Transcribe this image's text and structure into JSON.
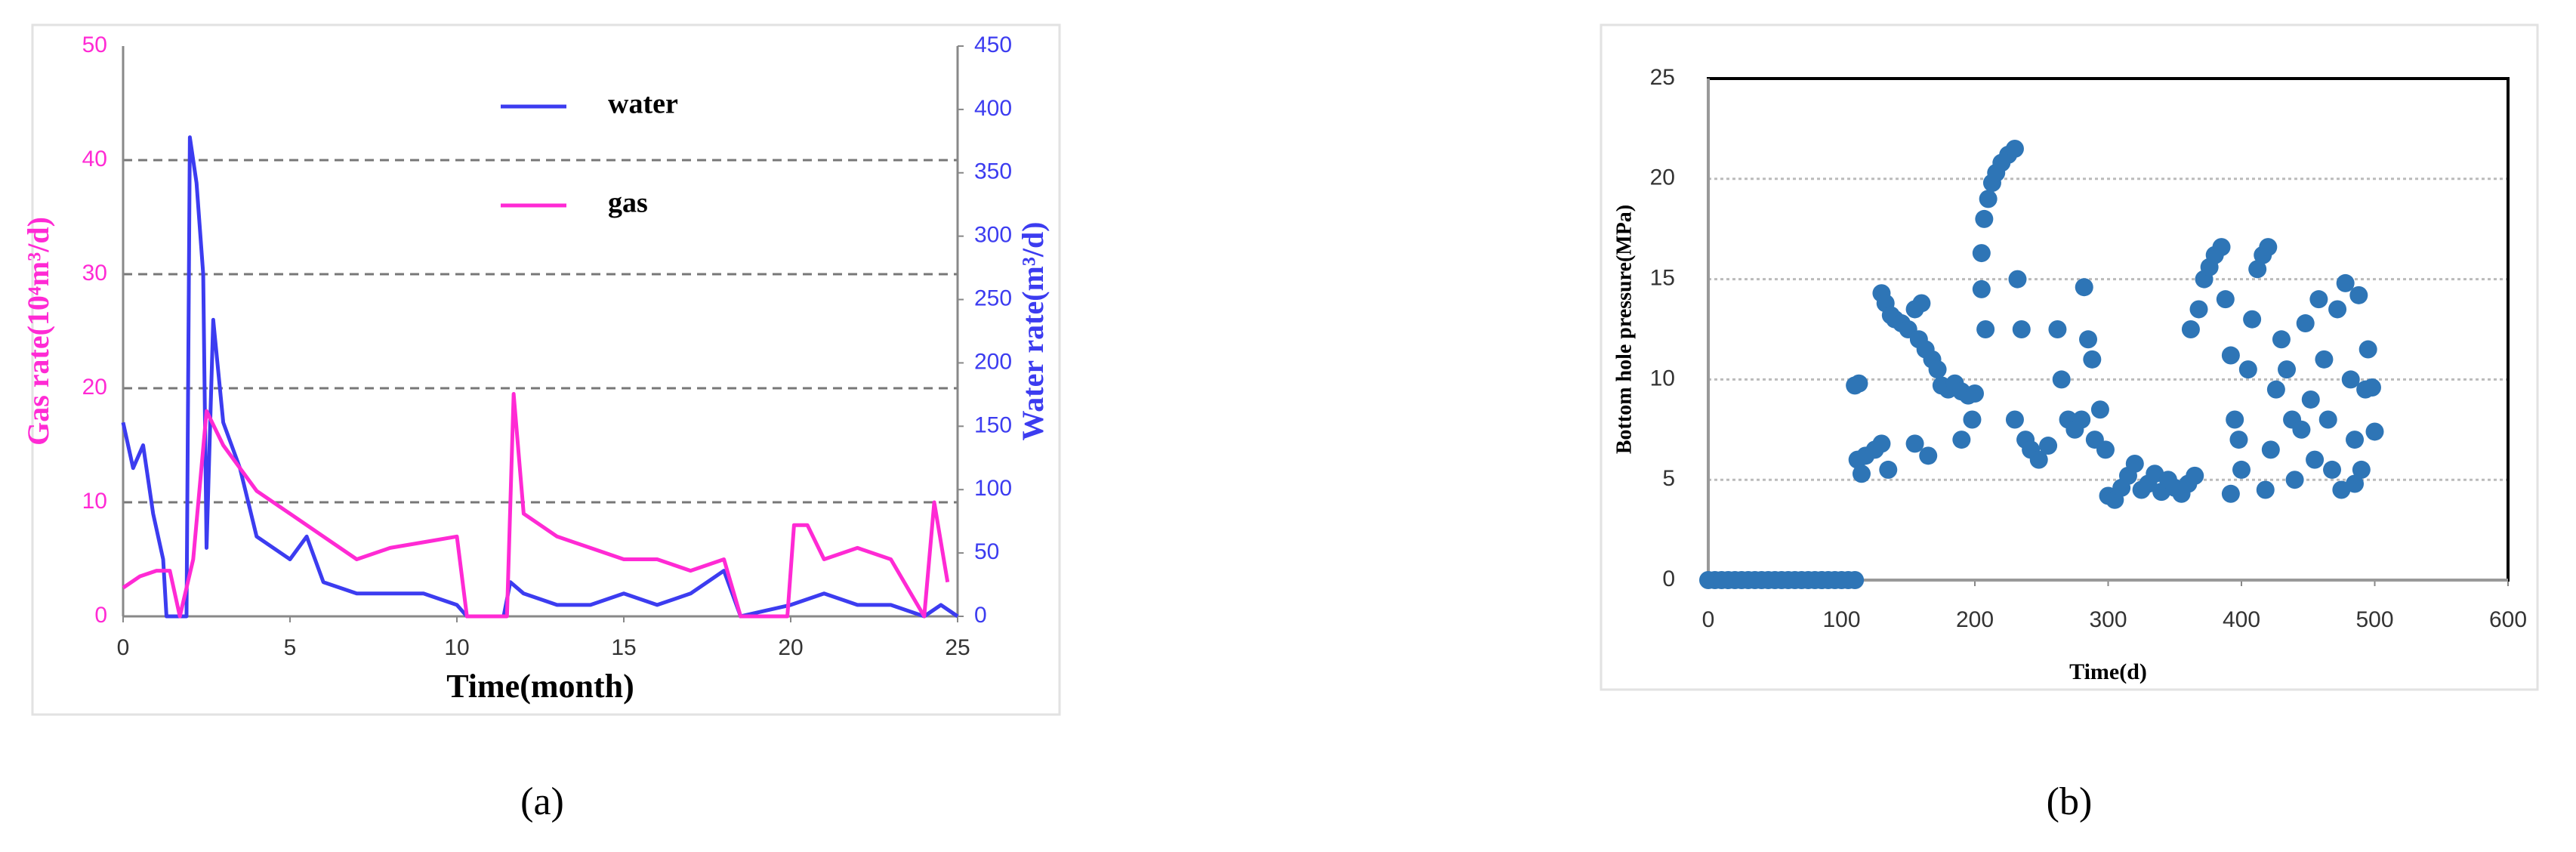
{
  "chart_data": [
    {
      "type": "line",
      "panel_label": "(a)",
      "xlabel": "Time(month)",
      "ylabel": "Gas rate(10⁴m³/d)",
      "y2label": "Water rate(m³/d)",
      "xlim": [
        0,
        25
      ],
      "xticks": [
        0,
        5,
        10,
        15,
        20,
        25
      ],
      "ylim": [
        0,
        50
      ],
      "yticks": [
        0,
        10,
        20,
        30,
        40,
        50
      ],
      "ycolor": "#ff2ad4",
      "y2lim": [
        0,
        450
      ],
      "y2ticks": [
        0,
        50,
        100,
        150,
        200,
        250,
        300,
        350,
        400,
        450
      ],
      "y2color": "#3c3cf0",
      "grid": true,
      "series": [
        {
          "name": "water",
          "color": "#3c3cf0",
          "axis": "y2",
          "x": [
            0,
            0.3,
            0.6,
            0.9,
            1.2,
            1.3,
            1.9,
            2.0,
            2.2,
            2.4,
            2.5,
            2.7,
            3,
            3.5,
            4,
            5,
            5.5,
            6,
            7,
            8,
            9,
            10,
            10.3,
            11.4,
            11.6,
            12,
            13,
            14,
            15,
            16,
            17,
            18,
            18.5,
            20,
            21,
            22,
            23,
            24,
            24.5,
            25
          ],
          "values": [
            153,
            117,
            135,
            81,
            45,
            0,
            0,
            378,
            342,
            270,
            54,
            234,
            153,
            117,
            63,
            45,
            63,
            27,
            18,
            18,
            18,
            9,
            0,
            0,
            27,
            18,
            9,
            9,
            18,
            9,
            18,
            36,
            0,
            9,
            18,
            9,
            9,
            0,
            9,
            0
          ]
        },
        {
          "name": "gas",
          "color": "#ff2ad4",
          "axis": "y",
          "x": [
            0,
            0.5,
            1,
            1.4,
            1.7,
            2.1,
            2.5,
            3,
            4,
            5,
            6,
            7,
            8,
            9,
            10,
            10.3,
            11.5,
            11.7,
            12,
            13,
            14,
            15,
            16,
            17,
            18,
            18.5,
            19.9,
            20.1,
            20.5,
            21,
            22,
            23,
            24,
            24.3,
            24.7
          ],
          "values": [
            2.5,
            3.5,
            4,
            4,
            0,
            5,
            18,
            15,
            11,
            9,
            7,
            5,
            6,
            6.5,
            7,
            0,
            0,
            19.5,
            9,
            7,
            6,
            5,
            5,
            4,
            5,
            0,
            0,
            8,
            8,
            5,
            6,
            5,
            0,
            10,
            3
          ]
        }
      ]
    },
    {
      "type": "scatter",
      "panel_label": "(b)",
      "xlabel": "Time(d)",
      "ylabel": "Bottom hole pressure(MPa)",
      "color": "#2e75b6",
      "xlim": [
        0,
        600
      ],
      "xticks": [
        0,
        100,
        200,
        300,
        400,
        500,
        600
      ],
      "ylim": [
        0,
        25
      ],
      "yticks": [
        0,
        5,
        10,
        15,
        20,
        25
      ],
      "grid": true,
      "x": [
        0,
        5,
        10,
        15,
        20,
        25,
        30,
        35,
        40,
        45,
        50,
        55,
        60,
        65,
        70,
        75,
        80,
        85,
        90,
        95,
        100,
        105,
        110,
        110,
        113,
        112,
        115,
        118,
        125,
        130,
        135,
        130,
        133,
        137,
        140,
        145,
        150,
        155,
        158,
        160,
        163,
        168,
        172,
        175,
        180,
        185,
        190,
        195,
        200,
        155,
        165,
        190,
        198,
        205,
        207,
        210,
        213,
        216,
        220,
        225,
        230,
        205,
        208,
        232,
        235,
        230,
        238,
        242,
        248,
        255,
        262,
        265,
        270,
        275,
        280,
        282,
        285,
        288,
        290,
        294,
        298,
        300,
        305,
        310,
        315,
        320,
        325,
        330,
        335,
        340,
        345,
        350,
        355,
        360,
        365,
        362,
        368,
        372,
        376,
        380,
        385,
        388,
        392,
        395,
        398,
        392,
        400,
        405,
        408,
        412,
        416,
        420,
        418,
        422,
        426,
        430,
        434,
        438,
        440,
        445,
        448,
        452,
        455,
        458,
        462,
        465,
        468,
        472,
        475,
        478,
        482,
        485,
        488,
        490,
        493,
        495,
        498,
        500,
        485
      ],
      "values": [
        0,
        0,
        0,
        0,
        0,
        0,
        0,
        0,
        0,
        0,
        0,
        0,
        0,
        0,
        0,
        0,
        0,
        0,
        0,
        0,
        0,
        0,
        0,
        9.7,
        9.8,
        6,
        5.3,
        6.2,
        6.5,
        6.8,
        5.5,
        14.3,
        13.8,
        13.2,
        13,
        12.8,
        12.5,
        13.5,
        12,
        13.8,
        11.5,
        11,
        10.5,
        9.7,
        9.5,
        9.8,
        9.4,
        9.2,
        9.3,
        6.8,
        6.2,
        7,
        8,
        16.3,
        18,
        19,
        19.8,
        20.3,
        20.8,
        21.2,
        21.5,
        14.5,
        12.5,
        15,
        12.5,
        8,
        7,
        6.5,
        6,
        6.7,
        12.5,
        10,
        8,
        7.5,
        8,
        14.6,
        12,
        11,
        7,
        8.5,
        6.5,
        4.2,
        4,
        4.6,
        5.2,
        5.8,
        4.5,
        4.8,
        5.3,
        4.4,
        5,
        4.6,
        4.3,
        4.8,
        5.2,
        12.5,
        13.5,
        15,
        15.6,
        16.2,
        16.6,
        14,
        11.2,
        8,
        7,
        4.3,
        5.5,
        10.5,
        13,
        15.5,
        16.2,
        16.6,
        4.5,
        6.5,
        9.5,
        12,
        10.5,
        8,
        5,
        7.5,
        12.8,
        9,
        6,
        14,
        11,
        8,
        5.5,
        13.5,
        4.5,
        14.8,
        10,
        7,
        14.2,
        5.5,
        9.5,
        11.5,
        9.6,
        7.4,
        4.8
      ]
    }
  ]
}
